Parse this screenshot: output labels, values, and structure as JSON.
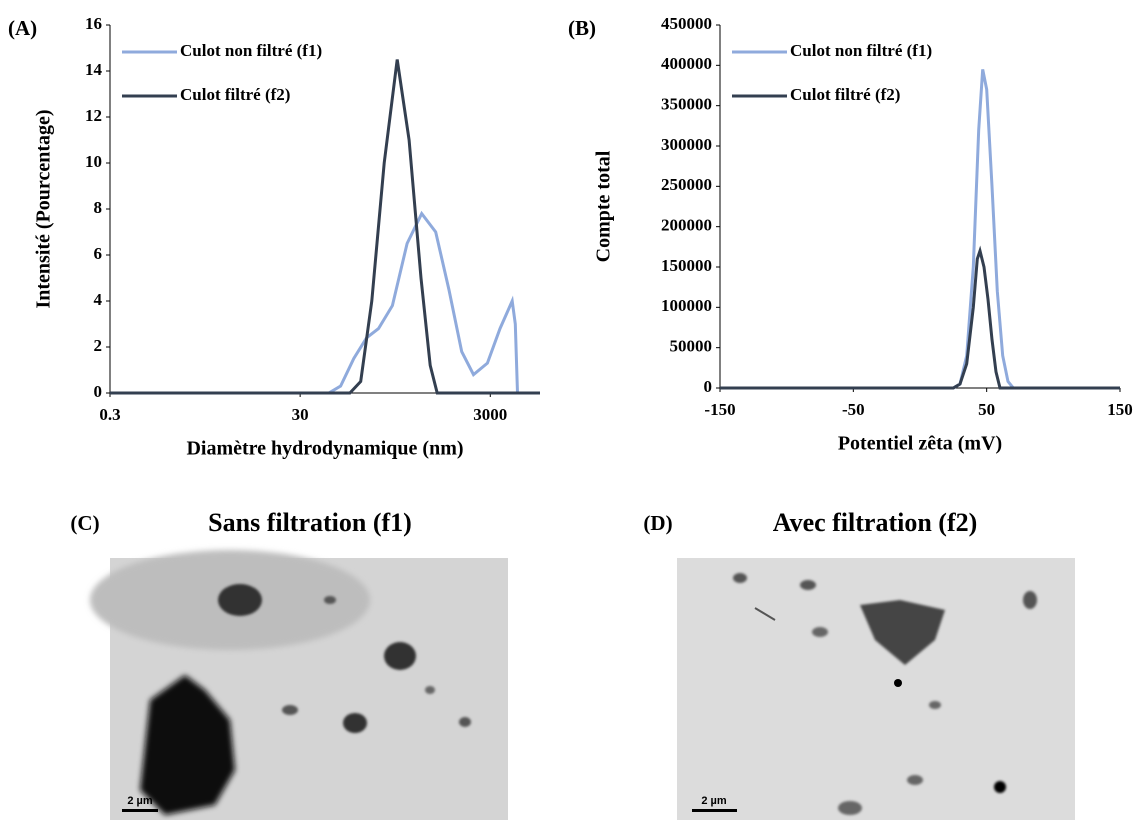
{
  "chart_data": [
    {
      "type": "line",
      "panel": "(A)",
      "xlabel": "Diamètre hydrodynamique (nm)",
      "ylabel": "Intensité (Pourcentage)",
      "xscale": "log",
      "xlim": [
        0.3,
        10000
      ],
      "xticks": [
        0.3,
        30,
        3000
      ],
      "ylim": [
        0,
        16
      ],
      "yticks": [
        0,
        2,
        4,
        6,
        8,
        10,
        12,
        14,
        16
      ],
      "legend": "upper left",
      "series": [
        {
          "name": "Culot non filtré (f1)",
          "color": "#8faadc",
          "x": [
            0.3,
            60,
            80,
            110,
            150,
            200,
            280,
            400,
            570,
            800,
            1100,
            1500,
            2000,
            2800,
            3800,
            5100,
            5500,
            5800,
            10000
          ],
          "values": [
            0,
            0,
            0.3,
            1.5,
            2.4,
            2.8,
            3.8,
            6.5,
            7.8,
            7,
            4.5,
            1.8,
            0.8,
            1.3,
            2.8,
            4,
            3,
            0,
            0
          ]
        },
        {
          "name": "Culot filtré (f2)",
          "color": "#333f50",
          "x": [
            0.3,
            100,
            130,
            170,
            230,
            315,
            420,
            560,
            700,
            830,
            10000
          ],
          "values": [
            0,
            0,
            0.5,
            4,
            10,
            14.5,
            11,
            5,
            1.2,
            0,
            0
          ]
        }
      ]
    },
    {
      "type": "line",
      "panel": "(B)",
      "xlabel": "Potentiel zêta (mV)",
      "ylabel": "Compte total",
      "xscale": "linear",
      "xlim": [
        -150,
        150
      ],
      "xticks": [
        -150,
        -50,
        50,
        150
      ],
      "ylim": [
        0,
        450000
      ],
      "yticks": [
        0,
        50000,
        100000,
        150000,
        200000,
        250000,
        300000,
        350000,
        400000,
        450000
      ],
      "legend": "upper left",
      "series": [
        {
          "name": "Culot non filtré (f1)",
          "color": "#8faadc",
          "x": [
            -150,
            25,
            30,
            35,
            40,
            44,
            47,
            50,
            54,
            58,
            62,
            66,
            70,
            150
          ],
          "values": [
            0,
            0,
            5000,
            40000,
            150000,
            320000,
            395000,
            370000,
            250000,
            120000,
            40000,
            8000,
            0,
            0
          ]
        },
        {
          "name": "Culot filtré (f2)",
          "color": "#333f50",
          "x": [
            -150,
            25,
            30,
            35,
            40,
            43,
            45,
            48,
            51,
            54,
            57,
            60,
            150
          ],
          "values": [
            0,
            0,
            5000,
            30000,
            100000,
            160000,
            170000,
            150000,
            110000,
            60000,
            20000,
            0,
            0
          ]
        }
      ]
    }
  ],
  "panels": [
    {
      "label": "(C)",
      "title": "Sans filtration (f1)",
      "scale": "2 µm"
    },
    {
      "label": "(D)",
      "title": "Avec filtration (f2)",
      "scale": "2 µm"
    }
  ]
}
